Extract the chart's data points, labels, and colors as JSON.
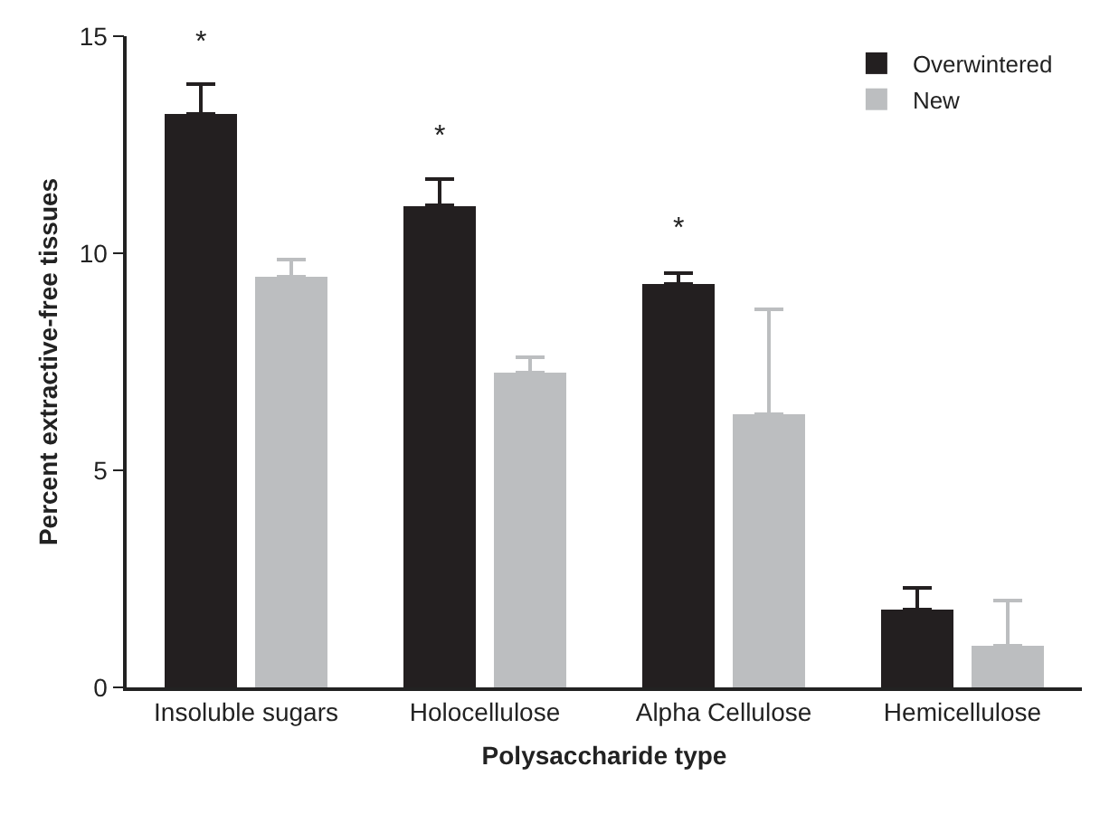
{
  "chart_data": {
    "type": "bar",
    "xlabel": "Polysaccharide type",
    "ylabel": "Percent extractive-free tissues",
    "categories": [
      "Insoluble sugars",
      "Holocellulose",
      "Alpha Cellulose",
      "Hemicellulose"
    ],
    "series": [
      {
        "name": "Overwintered",
        "color": "#231f20",
        "values": [
          13.2,
          11.1,
          9.3,
          1.8
        ],
        "errors": [
          [
            13.2,
            13.9
          ],
          [
            11.1,
            11.7
          ],
          [
            9.3,
            9.55
          ],
          [
            1.8,
            2.3
          ]
        ]
      },
      {
        "name": "New",
        "color": "#bcbec0",
        "values": [
          9.45,
          7.25,
          6.3,
          0.95
        ],
        "errors": [
          [
            9.45,
            9.85
          ],
          [
            7.25,
            7.6
          ],
          [
            6.3,
            8.7
          ],
          [
            0.95,
            2.0
          ]
        ]
      }
    ],
    "ylim": [
      0,
      15
    ],
    "yticks": [
      0,
      5,
      10,
      15
    ],
    "grid": false,
    "legend": "top right",
    "annotations": [
      "*",
      "*",
      "*"
    ]
  }
}
